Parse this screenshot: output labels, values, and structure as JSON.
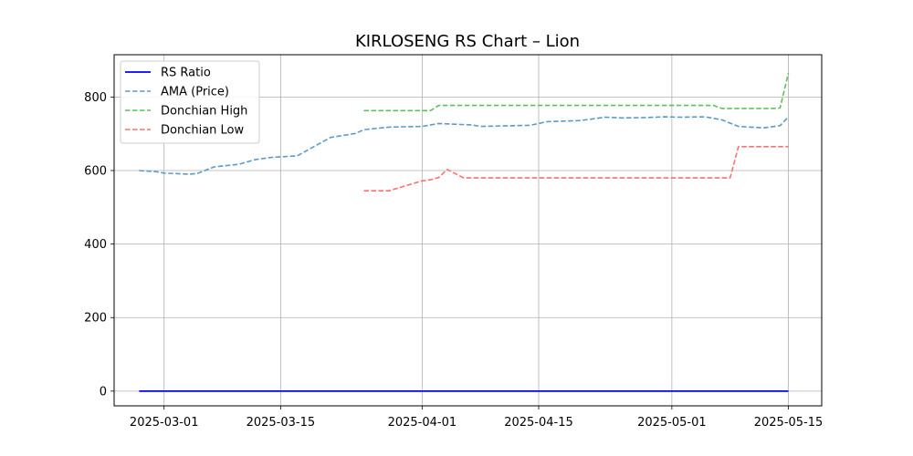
{
  "chart_data": {
    "type": "line",
    "title": "KIRLOSENG RS Chart – Lion",
    "xlabel": "",
    "ylabel": "",
    "xlim": [
      "2025-02-23",
      "2025-05-19"
    ],
    "ylim": [
      -40,
      915
    ],
    "x_ticks": [
      "2025-03-01",
      "2025-03-15",
      "2025-04-01",
      "2025-04-15",
      "2025-05-01",
      "2025-05-15"
    ],
    "y_ticks": [
      0,
      200,
      400,
      600,
      800
    ],
    "grid": true,
    "legend_position": "upper-left",
    "series": [
      {
        "name": "RS Ratio",
        "color": "#0000ff",
        "style": "solid",
        "points": [
          [
            "2025-02-26",
            0
          ],
          [
            "2025-05-15",
            0
          ]
        ]
      },
      {
        "name": "AMA (Price)",
        "color": "#5b9bc8",
        "style": "dashed",
        "points": [
          [
            "2025-02-26",
            600
          ],
          [
            "2025-02-28",
            597
          ],
          [
            "2025-03-01",
            593
          ],
          [
            "2025-03-03",
            591
          ],
          [
            "2025-03-04",
            590
          ],
          [
            "2025-03-05",
            592
          ],
          [
            "2025-03-07",
            610
          ],
          [
            "2025-03-10",
            617
          ],
          [
            "2025-03-12",
            630
          ],
          [
            "2025-03-14",
            636
          ],
          [
            "2025-03-17",
            640
          ],
          [
            "2025-03-19",
            665
          ],
          [
            "2025-03-21",
            690
          ],
          [
            "2025-03-24",
            701
          ],
          [
            "2025-03-25",
            711
          ],
          [
            "2025-03-28",
            718
          ],
          [
            "2025-04-01",
            720
          ],
          [
            "2025-04-03",
            728
          ],
          [
            "2025-04-07",
            724
          ],
          [
            "2025-04-08",
            720
          ],
          [
            "2025-04-14",
            723
          ],
          [
            "2025-04-16",
            733
          ],
          [
            "2025-04-20",
            736
          ],
          [
            "2025-04-23",
            745
          ],
          [
            "2025-04-25",
            743
          ],
          [
            "2025-04-28",
            744
          ],
          [
            "2025-04-30",
            746
          ],
          [
            "2025-05-02",
            745
          ],
          [
            "2025-05-05",
            746
          ],
          [
            "2025-05-07",
            738
          ],
          [
            "2025-05-09",
            720
          ],
          [
            "2025-05-12",
            716
          ],
          [
            "2025-05-14",
            722
          ],
          [
            "2025-05-15",
            746
          ]
        ]
      },
      {
        "name": "Donchian High",
        "color": "#5fbf5f",
        "style": "dashed",
        "points": [
          [
            "2025-03-25",
            763
          ],
          [
            "2025-04-02",
            763
          ],
          [
            "2025-04-03",
            777
          ],
          [
            "2025-05-06",
            777
          ],
          [
            "2025-05-07",
            769
          ],
          [
            "2025-05-13",
            769
          ],
          [
            "2025-05-14",
            770
          ],
          [
            "2025-05-15",
            865
          ]
        ]
      },
      {
        "name": "Donchian Low",
        "color": "#ff7070",
        "style": "dashed",
        "points": [
          [
            "2025-03-25",
            545
          ],
          [
            "2025-03-28",
            545
          ],
          [
            "2025-04-01",
            572
          ],
          [
            "2025-04-02",
            575
          ],
          [
            "2025-04-03",
            581
          ],
          [
            "2025-04-04",
            603
          ],
          [
            "2025-04-06",
            580
          ],
          [
            "2025-05-07",
            580
          ],
          [
            "2025-05-08",
            580
          ],
          [
            "2025-05-09",
            665
          ],
          [
            "2025-05-15",
            665
          ]
        ]
      }
    ]
  }
}
